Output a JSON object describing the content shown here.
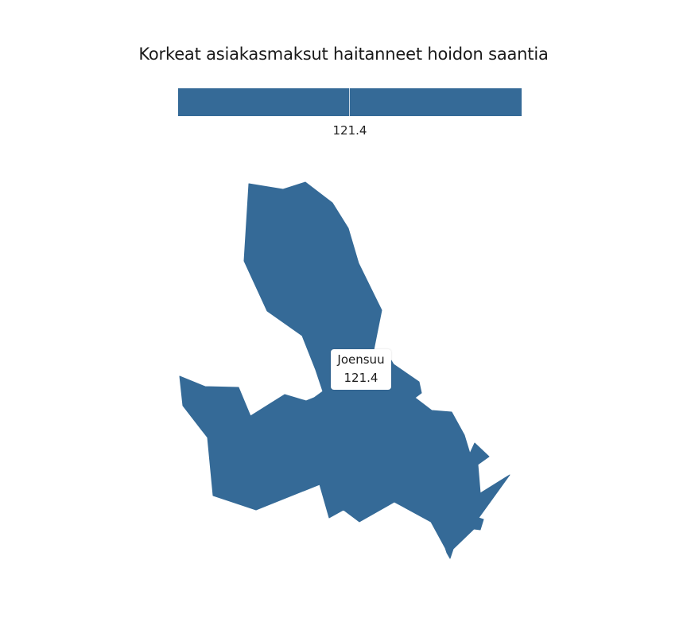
{
  "title": "Korkeat asiakasmaksut haitanneet hoidon saantia",
  "legend": {
    "value_label": "121.4",
    "color": "#356a97"
  },
  "regions": [
    {
      "name": "Joensuu",
      "value": 121.4,
      "fill_color": "#356a97"
    }
  ],
  "tooltip": {
    "name": "Joensuu",
    "value": "121.4"
  }
}
